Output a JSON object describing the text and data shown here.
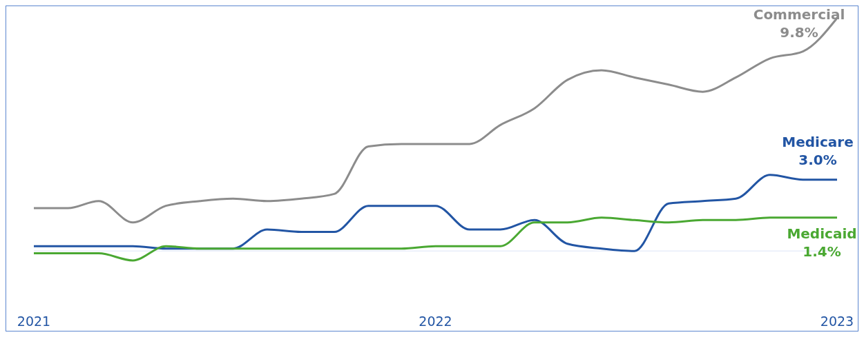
{
  "chart_data": {
    "type": "line",
    "x": [
      "2021-01",
      "2021-02",
      "2021-03",
      "2021-04",
      "2021-05",
      "2021-06",
      "2021-07",
      "2021-08",
      "2021-09",
      "2021-10",
      "2021-11",
      "2021-12",
      "2022-01",
      "2022-02",
      "2022-03",
      "2022-04",
      "2022-05",
      "2022-06",
      "2022-07",
      "2022-08",
      "2022-09",
      "2022-10",
      "2022-11",
      "2022-12",
      "2023-01"
    ],
    "series": [
      {
        "name": "Commercial",
        "color": "#8c8c8c",
        "values": [
          1.8,
          1.8,
          2.1,
          1.2,
          1.9,
          2.1,
          2.2,
          2.1,
          2.2,
          2.4,
          4.4,
          4.5,
          4.5,
          4.5,
          5.3,
          6.0,
          7.2,
          7.6,
          7.3,
          7.0,
          6.7,
          7.3,
          8.1,
          8.4,
          9.8
        ],
        "value_labels": [
          null,
          null,
          null,
          null,
          null,
          null,
          null,
          null,
          null,
          null,
          null,
          null,
          null,
          null,
          null,
          null,
          null,
          null,
          null,
          null,
          null,
          null,
          null,
          null,
          "9.8%"
        ]
      },
      {
        "name": "Medicare",
        "color": "#2255a4",
        "values": [
          0.2,
          0.2,
          0.2,
          0.2,
          0.1,
          0.1,
          0.1,
          0.9,
          0.8,
          0.8,
          1.9,
          1.9,
          1.9,
          0.9,
          0.9,
          1.3,
          0.3,
          0.1,
          0.0,
          2.0,
          2.1,
          2.2,
          3.2,
          3.0,
          3.0
        ],
        "value_labels": [
          null,
          null,
          null,
          null,
          null,
          null,
          null,
          null,
          null,
          null,
          null,
          null,
          null,
          null,
          null,
          null,
          null,
          null,
          null,
          null,
          null,
          null,
          null,
          null,
          "3.0%"
        ]
      },
      {
        "name": "Medicaid",
        "color": "#4aa832",
        "values": [
          -0.1,
          -0.1,
          -0.1,
          -0.4,
          0.2,
          0.1,
          0.1,
          0.1,
          0.1,
          0.1,
          0.1,
          0.1,
          0.2,
          0.2,
          0.2,
          1.2,
          1.2,
          1.4,
          1.3,
          1.2,
          1.3,
          1.3,
          1.4,
          1.4,
          1.4
        ],
        "value_labels": [
          null,
          null,
          null,
          null,
          null,
          null,
          null,
          null,
          null,
          null,
          null,
          null,
          null,
          null,
          null,
          null,
          null,
          null,
          null,
          null,
          null,
          null,
          null,
          null,
          "1.4%"
        ]
      }
    ],
    "xlim": [
      "2021-01",
      "2023-01"
    ],
    "xticks": [
      {
        "value": "2021-01",
        "label": "2021"
      },
      {
        "value": "2022-01",
        "label": "2022"
      },
      {
        "value": "2023-01",
        "label": "2023"
      }
    ],
    "ref_lines": [
      {
        "axis": "y",
        "value": 0,
        "label": null,
        "color": "#dbe4f6"
      }
    ],
    "tick_labels": "x",
    "grid": false,
    "legend": false,
    "marker": "none",
    "line_style": "solid"
  }
}
